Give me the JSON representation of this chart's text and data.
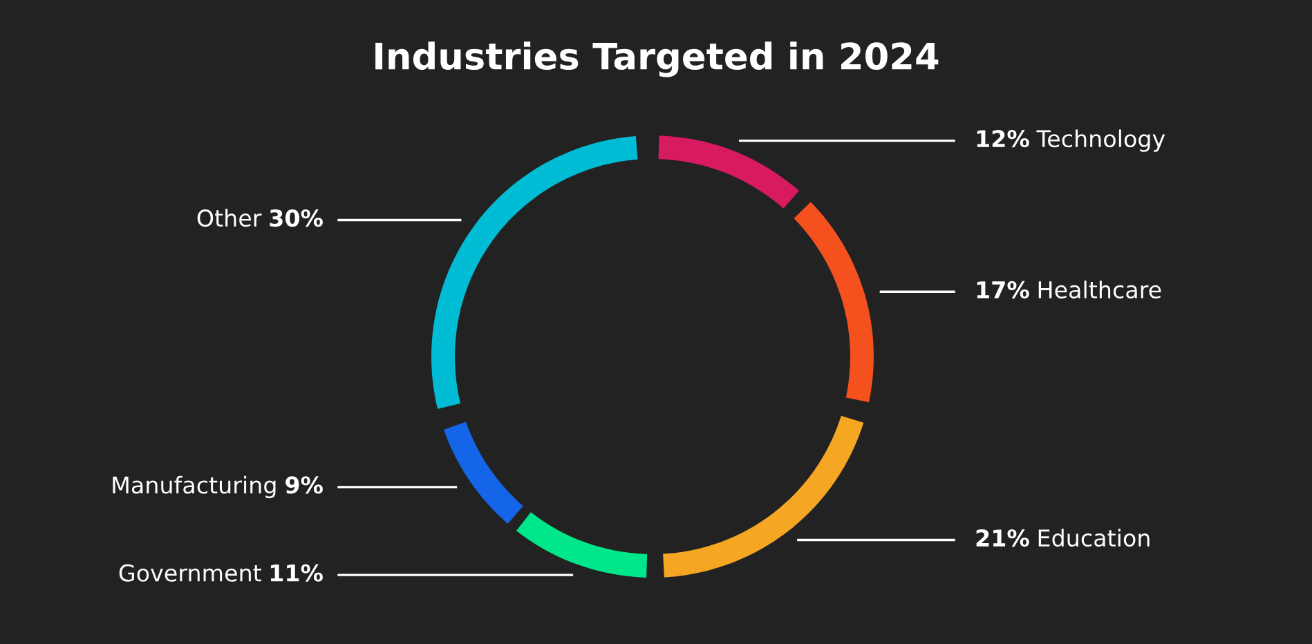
{
  "chart_data": {
    "type": "donut",
    "title": "Industries Targeted in 2024",
    "categories": [
      "Technology",
      "Healthcare",
      "Education",
      "Government",
      "Manufacturing",
      "Other"
    ],
    "values": [
      12,
      17,
      21,
      11,
      9,
      30
    ],
    "colors": [
      "#d81b60",
      "#f4511e",
      "#f5a623",
      "#00e68a",
      "#1565e8",
      "#00bcd4"
    ],
    "value_labels": [
      "12%",
      "17%",
      "21%",
      "11%",
      "9%",
      "30%"
    ]
  }
}
